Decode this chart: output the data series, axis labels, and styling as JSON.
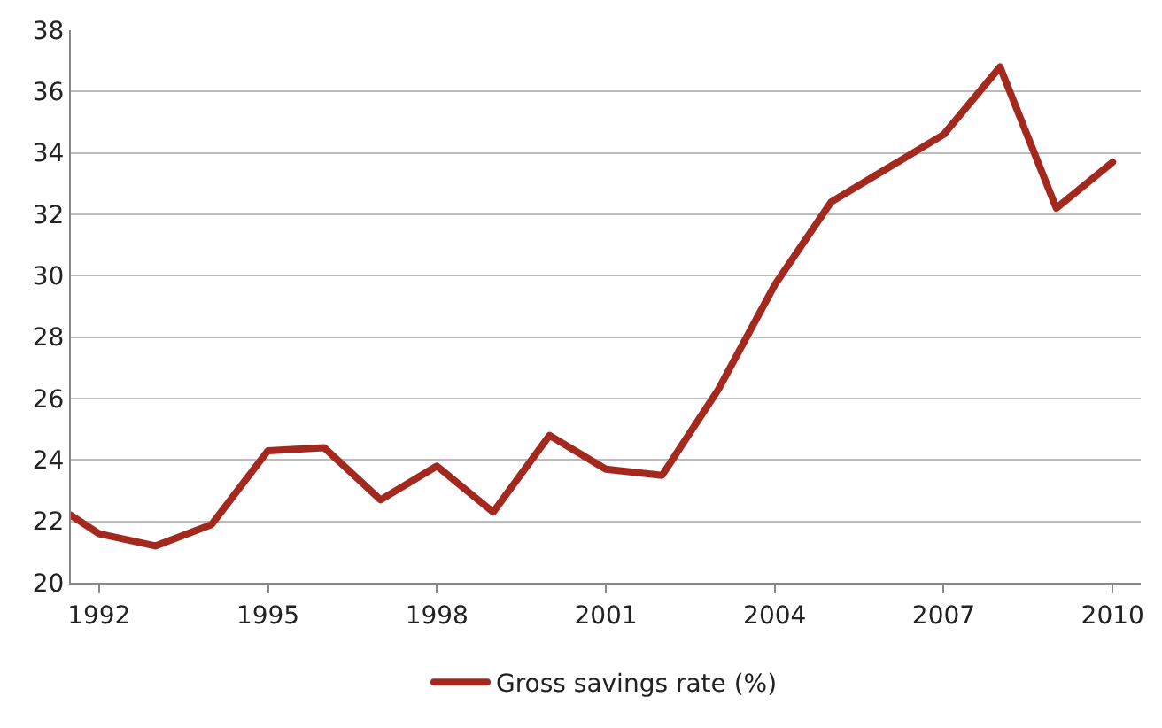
{
  "chart_data": {
    "type": "line",
    "x": [
      1991.5,
      1992,
      1993,
      1994,
      1995,
      1996,
      1997,
      1998,
      1999,
      2000,
      2001,
      2002,
      2003,
      2004,
      2005,
      2006,
      2007,
      2008,
      2009,
      2010
    ],
    "series": [
      {
        "name": "Gross savings rate (%)",
        "color": "#a3291f",
        "values": [
          22.2,
          21.6,
          21.2,
          21.9,
          24.3,
          24.4,
          22.7,
          23.8,
          22.3,
          24.8,
          23.7,
          23.5,
          26.3,
          29.7,
          32.4,
          33.5,
          34.6,
          36.8,
          32.2,
          33.7
        ]
      }
    ],
    "xlim": [
      1991.5,
      2010.5
    ],
    "xticks": [
      1992,
      1995,
      1998,
      2001,
      2004,
      2007,
      2010
    ],
    "ylim": [
      20,
      38
    ],
    "yticks": [
      20,
      22,
      24,
      26,
      28,
      30,
      32,
      34,
      36,
      38
    ],
    "grid": "y",
    "legend": "bottom",
    "marker": "none",
    "line_style": "solid"
  }
}
